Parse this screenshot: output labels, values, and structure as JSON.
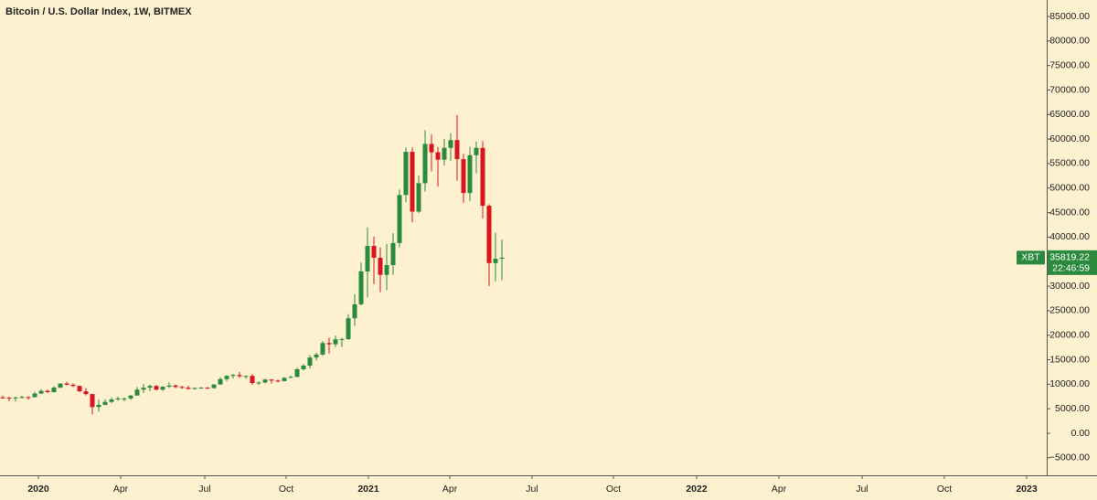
{
  "chart_data": {
    "type": "candlestick",
    "title": "Bitcoin / U.S. Dollar Index, 1W, BITMEX",
    "symbol": "XBT",
    "last_price": 35819.22,
    "countdown": "22:46:59",
    "up_color": "#2b8a3e",
    "down_color": "#d9161e",
    "background": "#fdf1cf",
    "grid": false,
    "open": [
      7300,
      7250,
      7150,
      7300,
      7400,
      7350,
      8100,
      8650,
      8400,
      9300,
      10150,
      9900,
      9650,
      8550,
      8000,
      5350,
      5800,
      6400,
      6900,
      7100,
      7100,
      7700,
      8900,
      9300,
      9650,
      8900,
      9500,
      9750,
      9450,
      9300,
      9050,
      9250,
      9300,
      9200,
      9950,
      11050,
      11700,
      11900,
      11650,
      11700,
      10250,
      10350,
      10950,
      10750,
      10650,
      11300,
      11500,
      13050,
      13800,
      15450,
      16050,
      18400,
      18150,
      19150,
      19200,
      23450,
      26300,
      33000,
      38200,
      35800,
      32300,
      34300,
      38800,
      48600,
      57400,
      45200,
      51000,
      59000,
      57300,
      55800,
      58200,
      59800,
      55900,
      49000,
      56700,
      58200,
      46400,
      34700,
      35600
    ],
    "high": [
      7700,
      7450,
      7500,
      7650,
      7500,
      8450,
      9000,
      8900,
      9600,
      10150,
      10500,
      10200,
      9700,
      9200,
      8050,
      6900,
      6950,
      7300,
      7450,
      7300,
      7800,
      9450,
      10050,
      9950,
      9850,
      9600,
      10400,
      9950,
      9700,
      9700,
      9300,
      9450,
      9450,
      10000,
      11450,
      11900,
      12100,
      12500,
      11800,
      12100,
      10600,
      11100,
      11050,
      10950,
      11450,
      11750,
      13350,
      14100,
      15950,
      16450,
      18800,
      19500,
      19900,
      19450,
      24300,
      28400,
      34800,
      42000,
      40100,
      37900,
      38600,
      40800,
      49700,
      58300,
      58300,
      52600,
      61800,
      60900,
      58400,
      60000,
      61200,
      64900,
      57000,
      58400,
      59500,
      59600,
      46700,
      40900,
      39500
    ],
    "low": [
      7100,
      6550,
      6450,
      7100,
      6850,
      7350,
      8000,
      8250,
      8300,
      9200,
      9750,
      9400,
      8450,
      7700,
      3850,
      4400,
      5700,
      6150,
      6650,
      6500,
      6800,
      7650,
      8200,
      8600,
      8750,
      8650,
      9250,
      9150,
      9050,
      8900,
      8900,
      9100,
      9050,
      9150,
      9900,
      10600,
      11150,
      11300,
      11100,
      9850,
      9850,
      10200,
      10150,
      10350,
      10550,
      11250,
      11400,
      12800,
      13200,
      14850,
      15800,
      16200,
      17600,
      17600,
      19000,
      21900,
      26100,
      27700,
      30400,
      28800,
      29200,
      32300,
      37900,
      47100,
      43000,
      44900,
      49300,
      53400,
      50300,
      54600,
      55500,
      51500,
      47000,
      47300,
      53000,
      43800,
      30000,
      31000,
      31200
    ],
    "close": [
      7250,
      7150,
      7300,
      7400,
      7350,
      8100,
      8650,
      8400,
      9300,
      10150,
      9900,
      9650,
      8550,
      8000,
      5350,
      5800,
      6400,
      6900,
      7100,
      7100,
      7700,
      8900,
      9300,
      9650,
      8900,
      9500,
      9750,
      9450,
      9300,
      9050,
      9250,
      9300,
      9200,
      9950,
      11050,
      11700,
      11900,
      11650,
      11700,
      10250,
      10350,
      10950,
      10750,
      10650,
      11300,
      11500,
      13050,
      13800,
      15450,
      16050,
      18400,
      18150,
      19150,
      19200,
      23450,
      26300,
      33000,
      38200,
      35800,
      32300,
      34300,
      38800,
      48600,
      57400,
      45200,
      51000,
      59000,
      57300,
      55800,
      58200,
      59800,
      55900,
      49000,
      56700,
      58200,
      46400,
      34700,
      35600,
      35819.22
    ],
    "xlim": [
      -0.43,
      163.14
    ],
    "xticks": [
      {
        "value": 5.57,
        "label": "2020"
      },
      {
        "value": 18.43,
        "label": "Apr"
      },
      {
        "value": 31.57,
        "label": "Jul"
      },
      {
        "value": 44.29,
        "label": "Oct"
      },
      {
        "value": 57.14,
        "label": "2021"
      },
      {
        "value": 69.86,
        "label": "Apr"
      },
      {
        "value": 82.71,
        "label": "Jul"
      },
      {
        "value": 95.43,
        "label": "Oct"
      },
      {
        "value": 108.43,
        "label": "2022"
      },
      {
        "value": 121.29,
        "label": "Apr"
      },
      {
        "value": 134.29,
        "label": "Jul"
      },
      {
        "value": 147.14,
        "label": "Oct"
      },
      {
        "value": 160,
        "label": "2023"
      }
    ],
    "ylim": [
      -8574,
      88355
    ],
    "yticks": [
      {
        "value": -5000,
        "label": "−5000.00"
      },
      {
        "value": 0,
        "label": "0.00"
      },
      {
        "value": 5000,
        "label": "5000.00"
      },
      {
        "value": 10000,
        "label": "10000.00"
      },
      {
        "value": 15000,
        "label": "15000.00"
      },
      {
        "value": 20000,
        "label": "20000.00"
      },
      {
        "value": 25000,
        "label": "25000.00"
      },
      {
        "value": 30000,
        "label": "30000.00"
      },
      {
        "value": 35000,
        "label": "35000.00"
      },
      {
        "value": 40000,
        "label": "40000.00"
      },
      {
        "value": 45000,
        "label": "45000.00"
      },
      {
        "value": 50000,
        "label": "50000.00"
      },
      {
        "value": 55000,
        "label": "55000.00"
      },
      {
        "value": 60000,
        "label": "60000.00"
      },
      {
        "value": 65000,
        "label": "65000.00"
      },
      {
        "value": 70000,
        "label": "70000.00"
      },
      {
        "value": 75000,
        "label": "75000.00"
      },
      {
        "value": 80000,
        "label": "80000.00"
      },
      {
        "value": 85000,
        "label": "85000.00"
      }
    ]
  }
}
